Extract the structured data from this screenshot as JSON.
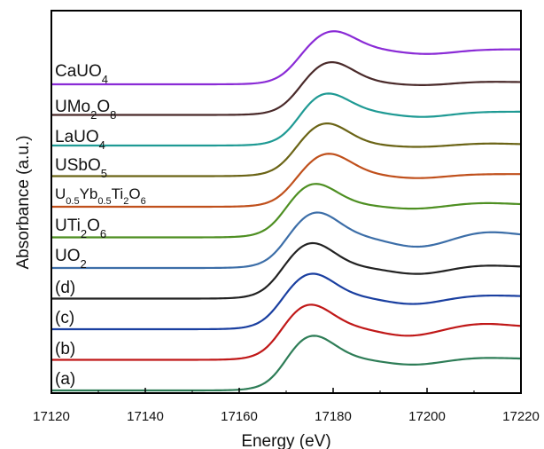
{
  "chart_data": {
    "type": "line",
    "title": "",
    "xlabel": "Energy (eV)",
    "ylabel": "Absorbance (a.u.)",
    "xlim": [
      17120,
      17220
    ],
    "x_ticks": [
      "17120",
      "17140",
      "17160",
      "17180",
      "17200",
      "17220"
    ],
    "y_ticks_shown": false,
    "grid": false,
    "legend": "inline labels at left of each curve",
    "series": [
      {
        "label": "(a)",
        "color": "#2e7d57",
        "edge": 17167,
        "peak_x": 17175,
        "peak": 1.05,
        "base": 0.05,
        "end": 0.6,
        "dip_x": 17197,
        "dip": 0.5,
        "hump_x": 17212,
        "hump": 0.62,
        "offset": 0.0
      },
      {
        "label": "(b)",
        "color": "#c01818",
        "edge": 17166,
        "peak_x": 17174.5,
        "peak": 1.05,
        "base": 0.05,
        "end": 0.62,
        "dip_x": 17196,
        "dip": 0.47,
        "hump_x": 17212,
        "hump": 0.68,
        "offset": 1.0
      },
      {
        "label": "(c)",
        "color": "#1a3fa0",
        "edge": 17166,
        "peak_x": 17175,
        "peak": 1.05,
        "base": 0.05,
        "end": 0.62,
        "dip_x": 17197,
        "dip": 0.49,
        "hump_x": 17213,
        "hump": 0.64,
        "offset": 2.0
      },
      {
        "label": "(d)",
        "color": "#222222",
        "edge": 17166,
        "peak_x": 17175,
        "peak": 1.05,
        "base": 0.05,
        "end": 0.6,
        "dip_x": 17198,
        "dip": 0.48,
        "hump_x": 17212,
        "hump": 0.63,
        "offset": 3.0
      },
      {
        "label": "UO2",
        "color": "#3c6ea8",
        "edge": 17167,
        "peak_x": 17176,
        "peak": 1.05,
        "base": 0.05,
        "end": 0.6,
        "dip_x": 17198,
        "dip": 0.42,
        "hump_x": 17213,
        "hump": 0.68,
        "offset": 4.0
      },
      {
        "label": "UTi2O6",
        "color": "#4e8f22",
        "edge": 17167,
        "peak_x": 17175.5,
        "peak": 1.02,
        "base": 0.05,
        "end": 0.62,
        "dip_x": 17197,
        "dip": 0.55,
        "hump_x": 17212,
        "hump": 0.65,
        "offset": 5.0
      },
      {
        "label": "U0.5Yb0.5Ti2O6",
        "color": "#c0501c",
        "edge": 17169,
        "peak_x": 17178.5,
        "peak": 1.0,
        "base": 0.05,
        "end": 0.62,
        "dip_x": 17198,
        "dip": 0.55,
        "hump_x": 17213,
        "hump": 0.62,
        "offset": 6.0
      },
      {
        "label": "USbO5",
        "color": "#6b6416",
        "edge": 17169,
        "peak_x": 17178,
        "peak": 1.0,
        "base": 0.05,
        "end": 0.6,
        "dip_x": 17198,
        "dip": 0.56,
        "hump_x": 17213,
        "hump": 0.62,
        "offset": 7.0
      },
      {
        "label": "LaUO4",
        "color": "#1f9a94",
        "edge": 17170,
        "peak_x": 17178,
        "peak": 1.0,
        "base": 0.05,
        "end": 0.64,
        "dip_x": 17199,
        "dip": 0.55,
        "hump_x": 17212,
        "hump": 0.64,
        "offset": 8.0
      },
      {
        "label": "UMo2O8",
        "color": "#4a2a2a",
        "edge": 17170,
        "peak_x": 17179,
        "peak": 1.0,
        "base": 0.05,
        "end": 0.62,
        "dip_x": 17199,
        "dip": 0.57,
        "hump_x": 17212,
        "hump": 0.63,
        "offset": 9.0
      },
      {
        "label": "CaUO4",
        "color": "#8a2bd6",
        "edge": 17170,
        "peak_x": 17179.5,
        "peak": 1.0,
        "base": 0.05,
        "end": 0.66,
        "dip_x": 17200,
        "dip": 0.58,
        "hump_x": 17213,
        "hump": 0.66,
        "offset": 10.0
      }
    ]
  }
}
